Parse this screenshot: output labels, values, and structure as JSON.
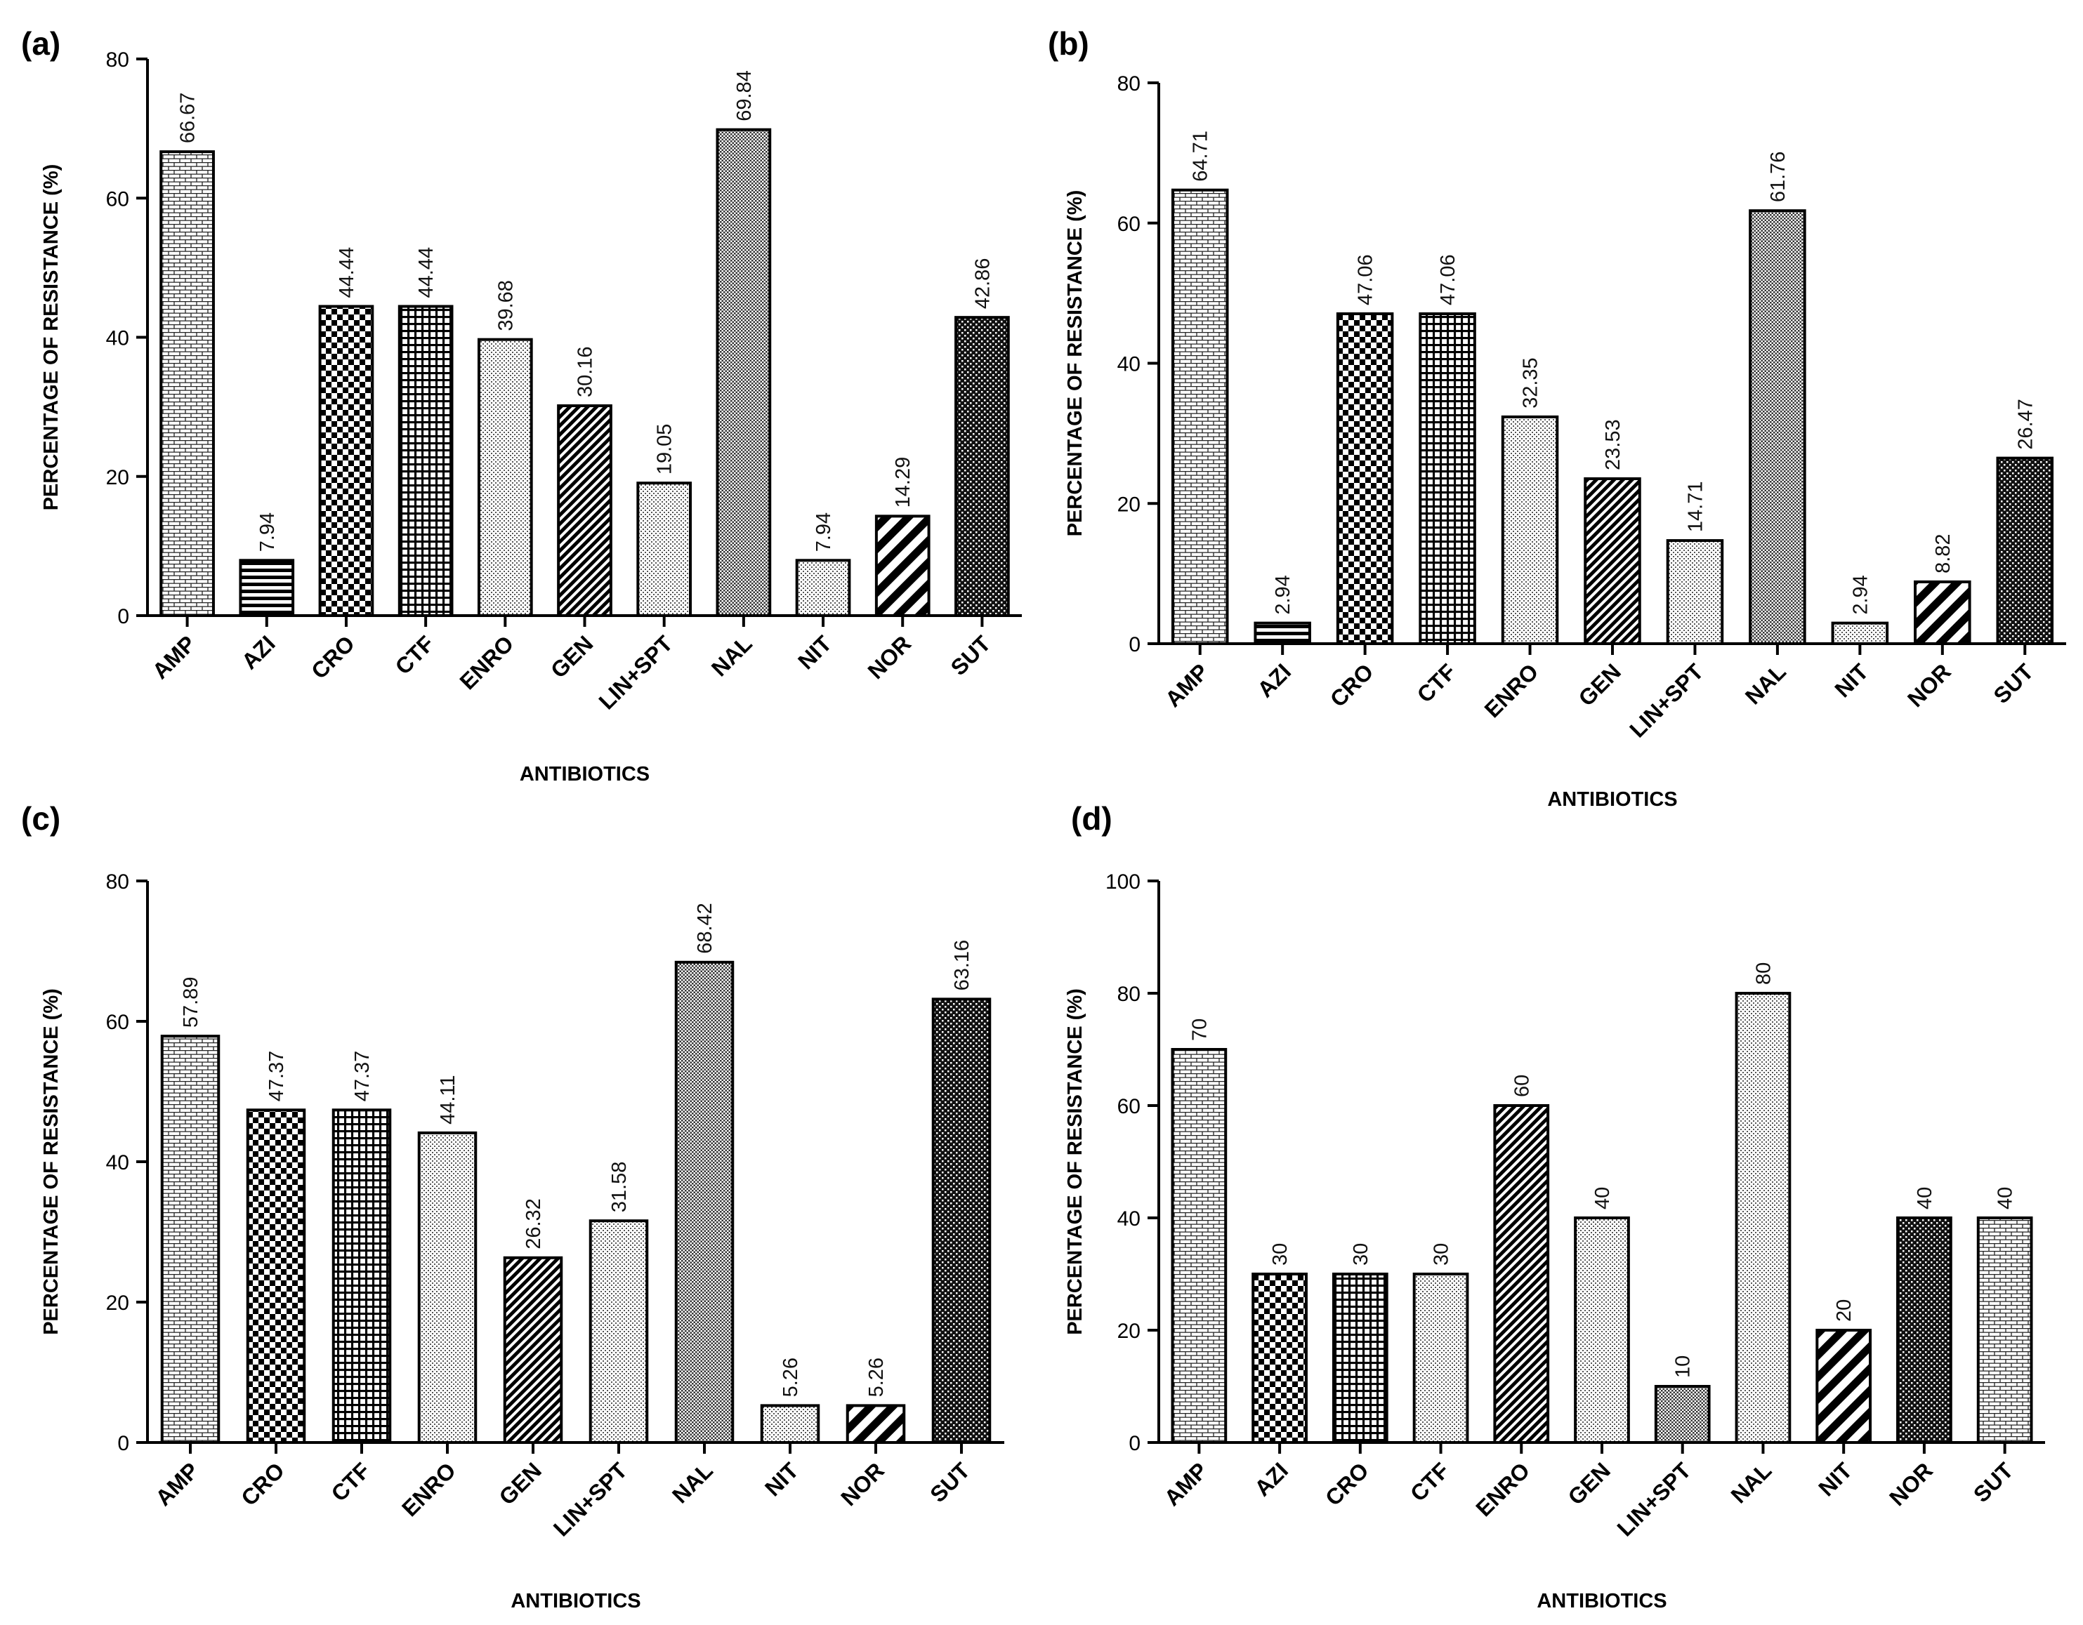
{
  "chart_data": [
    {
      "type": "bar",
      "panel": "(a)",
      "ylabel": "PERCENTAGE OF RESISTANCE (%)",
      "xlabel": "ANTIBIOTICS",
      "ylim": [
        0,
        80
      ],
      "yticks": [
        0,
        20,
        40,
        60,
        80
      ],
      "categories": [
        "AMP",
        "AZI",
        "CRO",
        "CTF",
        "ENRO",
        "GEN",
        "LIN+SPT",
        "NAL",
        "NIT",
        "NOR",
        "SUT"
      ],
      "values": [
        66.67,
        7.94,
        44.44,
        44.44,
        39.68,
        30.16,
        19.05,
        69.84,
        7.94,
        14.29,
        42.86
      ],
      "labels": [
        "66.67",
        "7.94",
        "44.44",
        "44.44",
        "39.68",
        "30.16",
        "19.05",
        "69.84",
        "7.94",
        "14.29",
        "42.86"
      ],
      "patterns": [
        "brick",
        "hstripe",
        "check",
        "grid",
        "dots",
        "diagdense",
        "dots",
        "fine",
        "dots",
        "diag",
        "darkdots"
      ]
    },
    {
      "type": "bar",
      "panel": "(b)",
      "ylabel": "PERCENTAGE OF RESISTANCE (%)",
      "xlabel": "ANTIBIOTICS",
      "ylim": [
        0,
        80
      ],
      "yticks": [
        0,
        20,
        40,
        60,
        80
      ],
      "categories": [
        "AMP",
        "AZI",
        "CRO",
        "CTF",
        "ENRO",
        "GEN",
        "LIN+SPT",
        "NAL",
        "NIT",
        "NOR",
        "SUT"
      ],
      "values": [
        64.71,
        2.94,
        47.06,
        47.06,
        32.35,
        23.53,
        14.71,
        61.76,
        2.94,
        8.82,
        26.47
      ],
      "labels": [
        "64.71",
        "2.94",
        "47.06",
        "47.06",
        "32.35",
        "23.53",
        "14.71",
        "61.76",
        "2.94",
        "8.82",
        "26.47"
      ],
      "patterns": [
        "brick",
        "hstripe",
        "check",
        "grid",
        "dots",
        "diagdense",
        "dots",
        "fine",
        "dots",
        "diag",
        "darkdots"
      ]
    },
    {
      "type": "bar",
      "panel": "(c)",
      "ylabel": "PERCENTAGE OF RESISTANCE (%)",
      "xlabel": "ANTIBIOTICS",
      "ylim": [
        0,
        80
      ],
      "yticks": [
        0,
        20,
        40,
        60,
        80
      ],
      "categories": [
        "AMP",
        "CRO",
        "CTF",
        "ENRO",
        "GEN",
        "LIN+SPT",
        "NAL",
        "NIT",
        "NOR",
        "SUT"
      ],
      "values": [
        57.89,
        47.37,
        47.37,
        44.11,
        26.32,
        31.58,
        68.42,
        5.26,
        5.26,
        63.16
      ],
      "labels": [
        "57.89",
        "47.37",
        "47.37",
        "44.11",
        "26.32",
        "31.58",
        "68.42",
        "5.26",
        "5.26",
        "63.16"
      ],
      "patterns": [
        "brick",
        "check",
        "grid",
        "dots",
        "diagdense",
        "dots",
        "fine",
        "dots",
        "diag",
        "darkdots"
      ]
    },
    {
      "type": "bar",
      "panel": "(d)",
      "ylabel": "PERCENTAGE OF RESISTANCE (%)",
      "xlabel": "ANTIBIOTICS",
      "ylim": [
        0,
        100
      ],
      "yticks": [
        0,
        20,
        40,
        60,
        80,
        100
      ],
      "categories": [
        "AMP",
        "AZI",
        "CRO",
        "CTF",
        "ENRO",
        "GEN",
        "LIN+SPT",
        "NAL",
        "NIT",
        "NOR",
        "SUT"
      ],
      "values": [
        70,
        30,
        30,
        30,
        60,
        40,
        10,
        80,
        20,
        40,
        40
      ],
      "labels": [
        "70",
        "30",
        "30",
        "30",
        "60",
        "40",
        "10",
        "80",
        "20",
        "40",
        "40"
      ],
      "patterns": [
        "brick",
        "check",
        "grid",
        "dots",
        "diagdense",
        "dots",
        "fine",
        "dots",
        "diag",
        "darkdots",
        "brick"
      ]
    }
  ]
}
